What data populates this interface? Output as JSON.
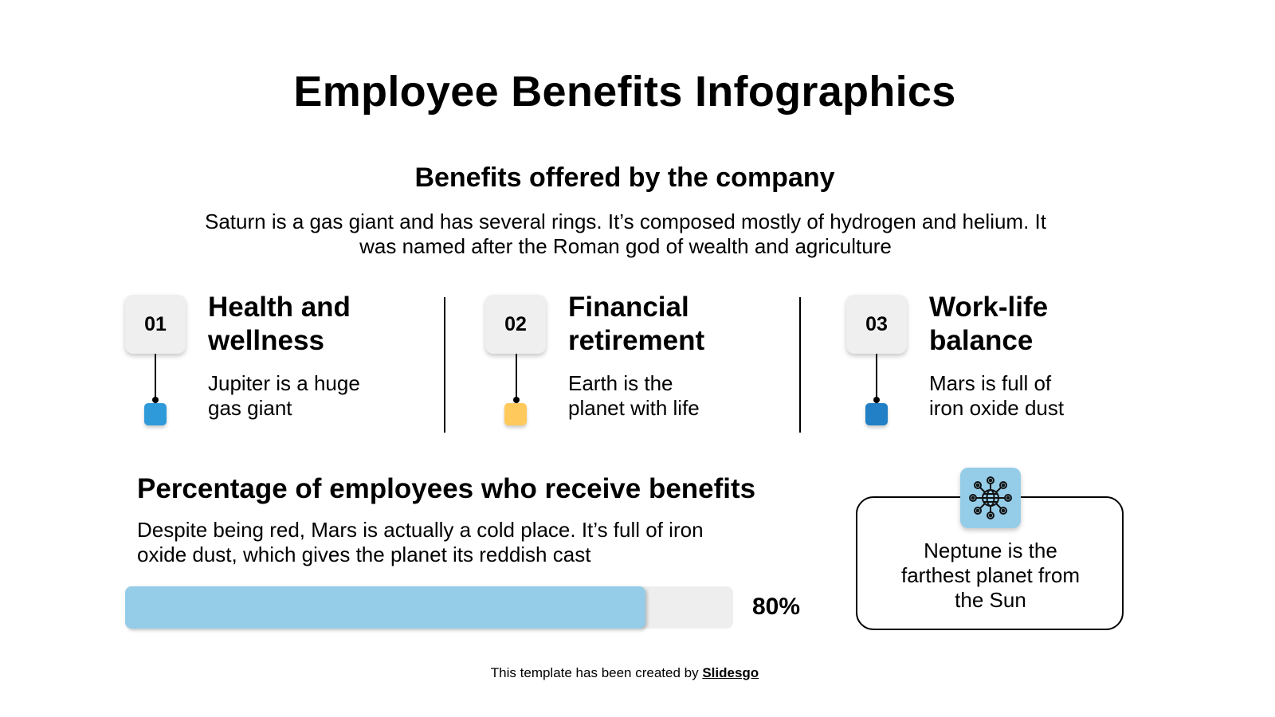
{
  "header": {
    "title": "Employee Benefits Infographics",
    "subtitle": "Benefits offered by the company",
    "intro_line1": "Saturn is a gas giant and has several rings. It’s composed mostly of hydrogen and helium. It",
    "intro_line2": "was named after the Roman god of wealth and agriculture"
  },
  "benefits": [
    {
      "number": "01",
      "title_line1": "Health and",
      "title_line2": "wellness",
      "desc_line1": "Jupiter is a huge",
      "desc_line2": "gas giant",
      "color": "#2f9ad9"
    },
    {
      "number": "02",
      "title_line1": "Financial",
      "title_line2": "retirement",
      "desc_line1": "Earth is the",
      "desc_line2": "planet with life",
      "color": "#ffc95c"
    },
    {
      "number": "03",
      "title_line1": "Work-life",
      "title_line2": "balance",
      "desc_line1": "Mars is full of",
      "desc_line2": "iron oxide dust",
      "color": "#2280c6"
    }
  ],
  "percentage_section": {
    "title": "Percentage of employees who receive benefits",
    "desc_line1": "Despite being red, Mars is actually a cold place. It’s full of iron",
    "desc_line2": "oxide dust, which gives the planet its reddish cast",
    "value": 80,
    "value_label": "80%",
    "fill_color": "#95cde8",
    "track_color": "#eeeeee"
  },
  "card": {
    "icon": "globe-network-icon",
    "line1": "Neptune is the",
    "line2": "farthest planet from",
    "line3": "the Sun"
  },
  "footer": {
    "prefix": "This template has been created by ",
    "link": "Slidesgo"
  }
}
